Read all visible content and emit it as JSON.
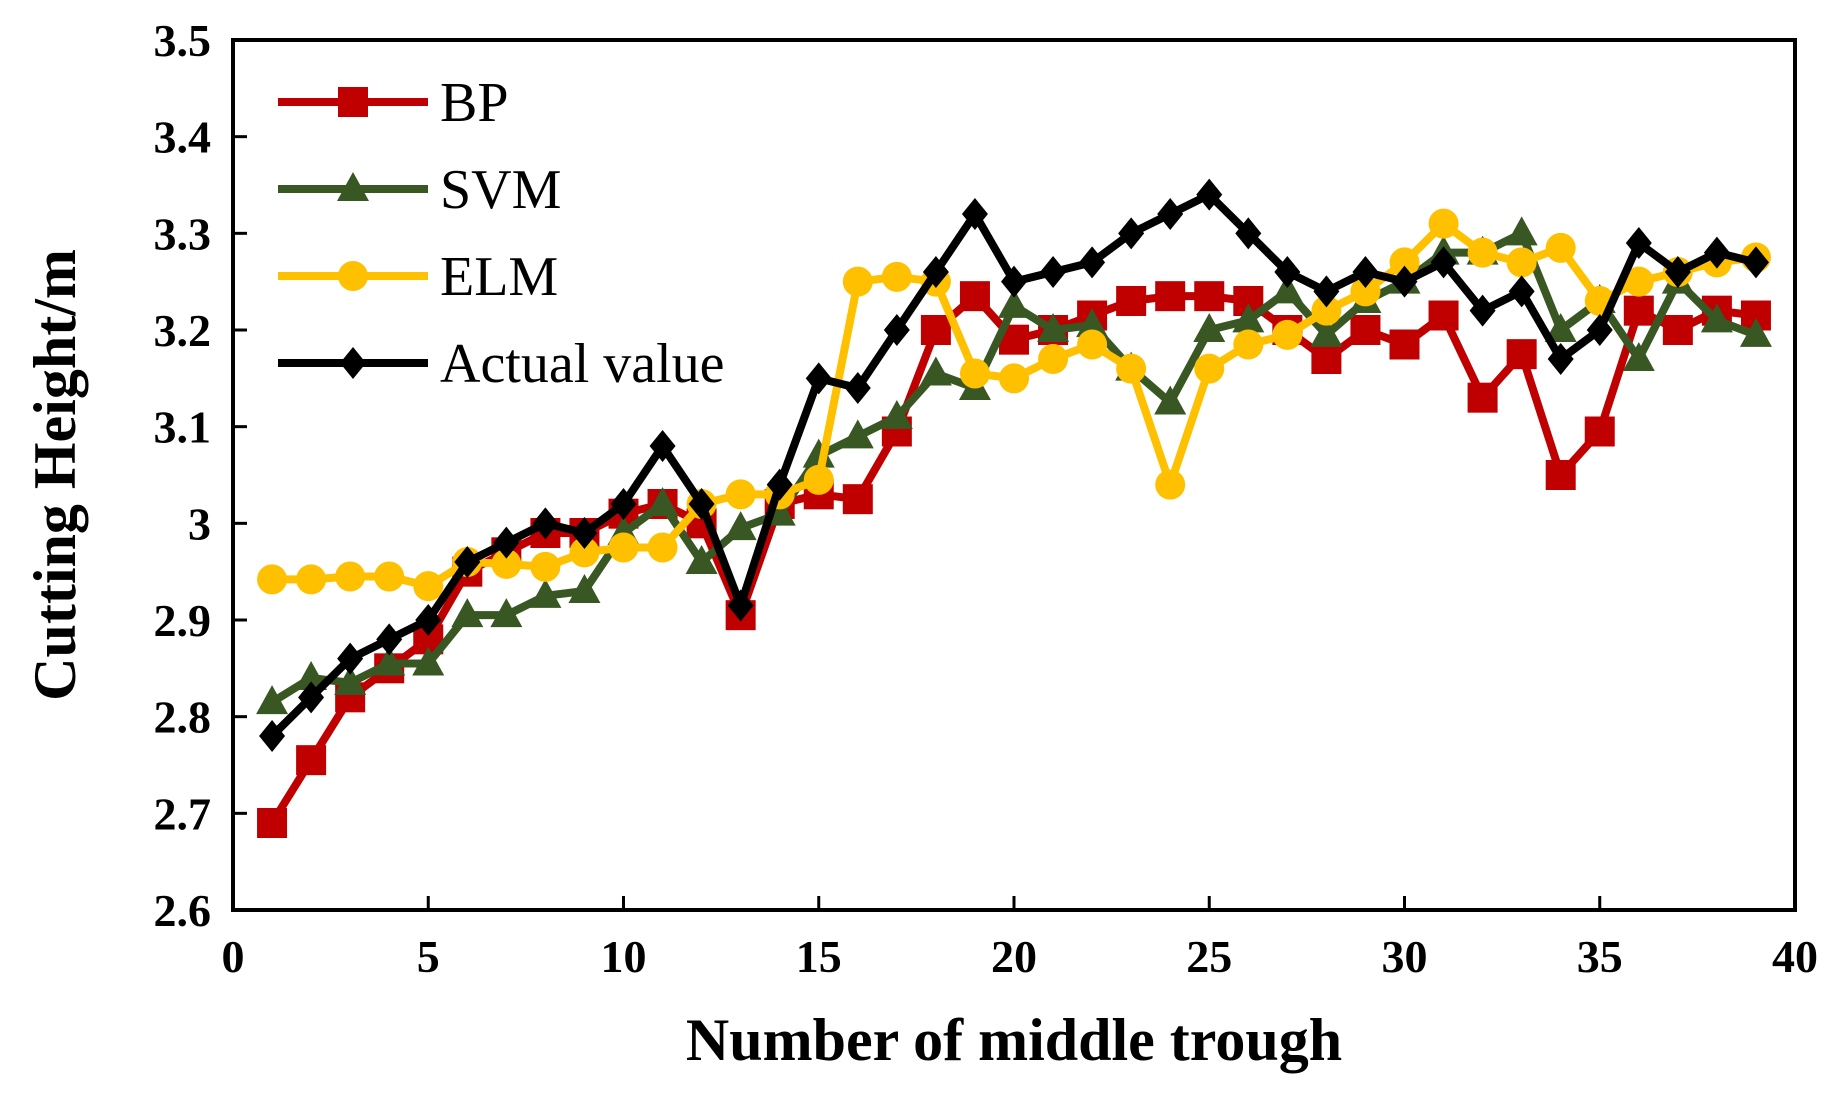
{
  "chart_data": {
    "type": "line",
    "title": "",
    "xlabel": "Number of middle trough",
    "ylabel": "Cutting Height/m",
    "xlim": [
      0,
      40
    ],
    "ylim": [
      2.6,
      3.5
    ],
    "x_ticks": [
      0,
      5,
      10,
      15,
      20,
      25,
      30,
      35,
      40
    ],
    "x_tick_labels": [
      "0",
      "5",
      "10",
      "15",
      "20",
      "25",
      "30",
      "35",
      "40"
    ],
    "y_ticks": [
      2.6,
      2.7,
      2.8,
      2.9,
      3.0,
      3.1,
      3.2,
      3.3,
      3.4,
      3.5
    ],
    "y_tick_labels": [
      "2.6",
      "2.7",
      "2.8",
      "2.9",
      "3",
      "3.1",
      "3.2",
      "3.3",
      "3.4",
      "3.5"
    ],
    "grid": false,
    "legend_position": "top-left",
    "x": [
      1,
      2,
      3,
      4,
      5,
      6,
      7,
      8,
      9,
      10,
      11,
      12,
      13,
      14,
      15,
      16,
      17,
      18,
      19,
      20,
      21,
      22,
      23,
      24,
      25,
      26,
      27,
      28,
      29,
      30,
      31,
      32,
      33,
      34,
      35,
      36,
      37,
      38,
      39
    ],
    "series": [
      {
        "name": "BP",
        "color": "#c00000",
        "marker": "square",
        "values": [
          2.69,
          2.755,
          2.82,
          2.85,
          2.88,
          2.95,
          2.97,
          2.99,
          2.99,
          3.01,
          3.02,
          3.0,
          2.905,
          3.02,
          3.03,
          3.025,
          3.095,
          3.2,
          3.235,
          3.19,
          3.2,
          3.215,
          3.23,
          3.235,
          3.235,
          3.23,
          3.2,
          3.17,
          3.2,
          3.185,
          3.215,
          3.13,
          3.175,
          3.05,
          3.095,
          3.22,
          3.2,
          3.22,
          3.215
        ]
      },
      {
        "name": "SVM",
        "color": "#385723",
        "marker": "triangle",
        "values": [
          2.815,
          2.84,
          2.835,
          2.855,
          2.855,
          2.905,
          2.905,
          2.925,
          2.93,
          2.99,
          3.02,
          2.96,
          2.995,
          3.01,
          3.07,
          3.09,
          3.11,
          3.155,
          3.14,
          3.225,
          3.2,
          3.205,
          3.16,
          3.125,
          3.2,
          3.21,
          3.24,
          3.195,
          3.23,
          3.25,
          3.28,
          3.28,
          3.3,
          3.2,
          3.23,
          3.17,
          3.25,
          3.21,
          3.195
        ]
      },
      {
        "name": "ELM",
        "color": "#ffc000",
        "marker": "circle",
        "values": [
          2.942,
          2.942,
          2.945,
          2.945,
          2.935,
          2.96,
          2.958,
          2.955,
          2.97,
          2.975,
          2.975,
          3.02,
          3.03,
          3.03,
          3.045,
          3.25,
          3.255,
          3.25,
          3.155,
          3.15,
          3.17,
          3.185,
          3.16,
          3.04,
          3.16,
          3.185,
          3.195,
          3.22,
          3.24,
          3.27,
          3.31,
          3.28,
          3.27,
          3.285,
          3.23,
          3.25,
          3.26,
          3.27,
          3.275
        ]
      },
      {
        "name": "Actual value",
        "color": "#000000",
        "marker": "diamond",
        "values": [
          2.78,
          2.82,
          2.86,
          2.88,
          2.9,
          2.96,
          2.98,
          3.0,
          2.99,
          3.02,
          3.08,
          3.02,
          2.915,
          3.04,
          3.15,
          3.14,
          3.2,
          3.26,
          3.32,
          3.25,
          3.26,
          3.27,
          3.3,
          3.32,
          3.34,
          3.3,
          3.26,
          3.24,
          3.26,
          3.25,
          3.27,
          3.22,
          3.24,
          3.17,
          3.2,
          3.29,
          3.26,
          3.28,
          3.27
        ]
      }
    ]
  }
}
